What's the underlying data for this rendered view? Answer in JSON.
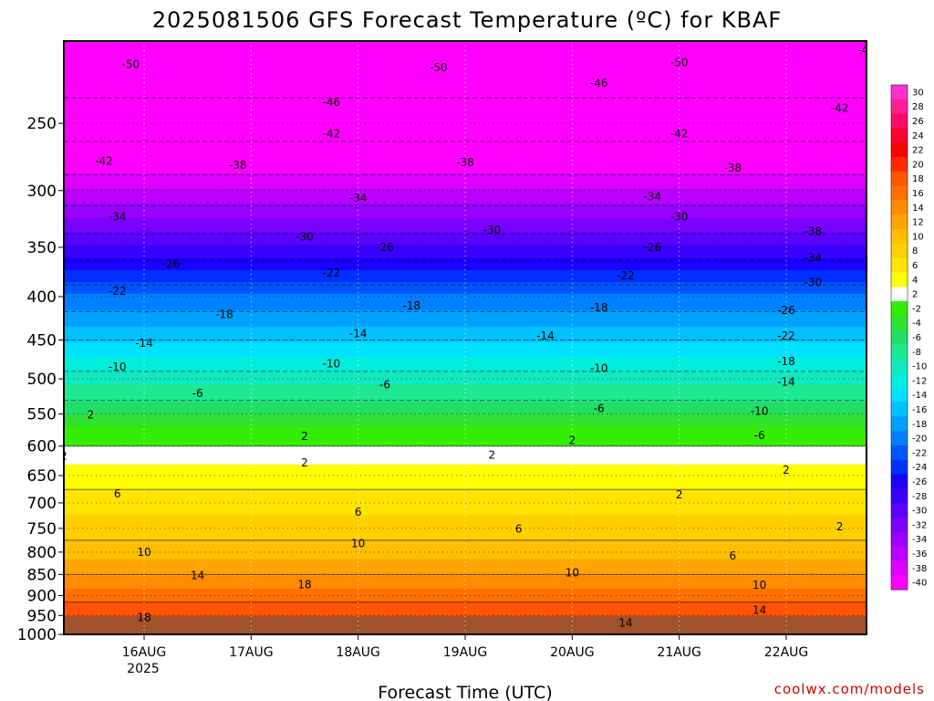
{
  "chart_data": {
    "type": "heatmap",
    "title": "2025081506 GFS Forecast Temperature (ºC) for KBAF",
    "xlabel": "Forecast Time (UTC)",
    "ylabel": "",
    "x_ticks": [
      "16AUG",
      "17AUG",
      "18AUG",
      "19AUG",
      "20AUG",
      "21AUG",
      "22AUG"
    ],
    "x_year_label": "2025",
    "x_range": [
      "2025-08-15T06:00Z",
      "2025-08-22T18:00Z"
    ],
    "y_ticks": [
      250,
      300,
      350,
      400,
      450,
      500,
      550,
      600,
      650,
      700,
      750,
      800,
      850,
      900,
      950,
      1000
    ],
    "y_range_hpa": [
      200,
      1000
    ],
    "y_scale": "log",
    "y_unit": "hPa",
    "grid": true,
    "colorbar_labels": [
      30,
      28,
      26,
      24,
      22,
      20,
      18,
      16,
      14,
      12,
      10,
      8,
      6,
      4,
      2,
      -2,
      -4,
      -6,
      -8,
      -10,
      -12,
      -14,
      -16,
      -18,
      -20,
      -22,
      -24,
      -26,
      -28,
      -30,
      -32,
      -34,
      -36,
      -38,
      -40
    ],
    "colorbar_colors": [
      "#ff33cc",
      "#ff1f99",
      "#ff0a66",
      "#ff0033",
      "#ff0000",
      "#ff2a00",
      "#ff5500",
      "#ff7000",
      "#ff8c00",
      "#ffa500",
      "#ffbe00",
      "#ffd000",
      "#ffe400",
      "#ffff00",
      "#ffffff",
      "#33ee00",
      "#2ee22e",
      "#22dd66",
      "#1ee890",
      "#11e8c0",
      "#00eedd",
      "#00e0ff",
      "#00c0ff",
      "#00a0ff",
      "#0080ff",
      "#0055ff",
      "#0030ff",
      "#1a00ff",
      "#3a00ff",
      "#5a00ff",
      "#7a00ff",
      "#9900ff",
      "#bb00ff",
      "#dd00ff",
      "#ff00ff"
    ],
    "temperature_profile_pressure_hpa": [
      200,
      250,
      300,
      350,
      400,
      450,
      500,
      550,
      600,
      650,
      700,
      750,
      800,
      850,
      900,
      950,
      1000
    ],
    "temperature_profile_c": [
      -50,
      -44,
      -36,
      -28,
      -20,
      -14,
      -9,
      -4,
      2,
      5,
      7,
      9,
      11,
      14,
      17,
      20,
      22
    ],
    "contour_labels": [
      {
        "time": "2025-08-15T21:00Z",
        "p": 213,
        "text": "-50"
      },
      {
        "time": "2025-08-18T18:00Z",
        "p": 215,
        "text": "-50"
      },
      {
        "time": "2025-08-21T00:00Z",
        "p": 212,
        "text": "-50"
      },
      {
        "time": "2025-08-22T18:00Z",
        "p": 205,
        "text": "-46"
      },
      {
        "time": "2025-08-17T18:00Z",
        "p": 236,
        "text": "-46"
      },
      {
        "time": "2025-08-20T06:00Z",
        "p": 224,
        "text": "-46"
      },
      {
        "time": "2025-08-17T18:00Z",
        "p": 257,
        "text": "-42"
      },
      {
        "time": "2025-08-15T15:00Z",
        "p": 277,
        "text": "-42"
      },
      {
        "time": "2025-08-21T00:00Z",
        "p": 257,
        "text": "-42"
      },
      {
        "time": "2025-08-22T12:00Z",
        "p": 240,
        "text": "-42"
      },
      {
        "time": "2025-08-16T21:00Z",
        "p": 280,
        "text": "-38"
      },
      {
        "time": "2025-08-19T00:00Z",
        "p": 278,
        "text": "-38"
      },
      {
        "time": "2025-08-21T12:00Z",
        "p": 282,
        "text": "-38"
      },
      {
        "time": "2025-08-22T06:00Z",
        "p": 335,
        "text": "-38"
      },
      {
        "time": "2025-08-15T18:00Z",
        "p": 322,
        "text": "-34"
      },
      {
        "time": "2025-08-18T00:00Z",
        "p": 306,
        "text": "-34"
      },
      {
        "time": "2025-08-20T18:00Z",
        "p": 305,
        "text": "-34"
      },
      {
        "time": "2025-08-22T06:00Z",
        "p": 360,
        "text": "-34"
      },
      {
        "time": "2025-08-17T12:00Z",
        "p": 340,
        "text": "-30"
      },
      {
        "time": "2025-08-19T06:00Z",
        "p": 334,
        "text": "-30"
      },
      {
        "time": "2025-08-21T00:00Z",
        "p": 322,
        "text": "-30"
      },
      {
        "time": "2025-08-22T06:00Z",
        "p": 385,
        "text": "-30"
      },
      {
        "time": "2025-08-16T06:00Z",
        "p": 366,
        "text": "-26"
      },
      {
        "time": "2025-08-18T06:00Z",
        "p": 350,
        "text": "-26"
      },
      {
        "time": "2025-08-20T18:00Z",
        "p": 350,
        "text": "-26"
      },
      {
        "time": "2025-08-22T00:00Z",
        "p": 415,
        "text": "-26"
      },
      {
        "time": "2025-08-15T18:00Z",
        "p": 394,
        "text": "-22"
      },
      {
        "time": "2025-08-17T18:00Z",
        "p": 375,
        "text": "-22"
      },
      {
        "time": "2025-08-20T12:00Z",
        "p": 378,
        "text": "-22"
      },
      {
        "time": "2025-08-22T00:00Z",
        "p": 445,
        "text": "-22"
      },
      {
        "time": "2025-08-16T18:00Z",
        "p": 420,
        "text": "-18"
      },
      {
        "time": "2025-08-18T12:00Z",
        "p": 410,
        "text": "-18"
      },
      {
        "time": "2025-08-20T06:00Z",
        "p": 412,
        "text": "-18"
      },
      {
        "time": "2025-08-22T00:00Z",
        "p": 477,
        "text": "-18"
      },
      {
        "time": "2025-08-16T00:00Z",
        "p": 454,
        "text": "-14"
      },
      {
        "time": "2025-08-18T00:00Z",
        "p": 442,
        "text": "-14"
      },
      {
        "time": "2025-08-19T18:00Z",
        "p": 445,
        "text": "-14"
      },
      {
        "time": "2025-08-22T00:00Z",
        "p": 504,
        "text": "-14"
      },
      {
        "time": "2025-08-15T18:00Z",
        "p": 484,
        "text": "-10"
      },
      {
        "time": "2025-08-17T18:00Z",
        "p": 480,
        "text": "-10"
      },
      {
        "time": "2025-08-20T06:00Z",
        "p": 486,
        "text": "-10"
      },
      {
        "time": "2025-08-21T18:00Z",
        "p": 546,
        "text": "-10"
      },
      {
        "time": "2025-08-16T12:00Z",
        "p": 520,
        "text": "-6"
      },
      {
        "time": "2025-08-18T06:00Z",
        "p": 508,
        "text": "-6"
      },
      {
        "time": "2025-08-20T06:00Z",
        "p": 542,
        "text": "-6"
      },
      {
        "time": "2025-08-21T18:00Z",
        "p": 583,
        "text": "-6"
      },
      {
        "time": "2025-08-15T12:00Z",
        "p": 551,
        "text": "2"
      },
      {
        "time": "2025-08-17T12:00Z",
        "p": 584,
        "text": "2"
      },
      {
        "time": "2025-08-15T06:00Z",
        "p": 616,
        "text": "2"
      },
      {
        "time": "2025-08-17T12:00Z",
        "p": 628,
        "text": "2"
      },
      {
        "time": "2025-08-19T06:00Z",
        "p": 615,
        "text": "2"
      },
      {
        "time": "2025-08-20T00:00Z",
        "p": 591,
        "text": "2"
      },
      {
        "time": "2025-08-21T00:00Z",
        "p": 685,
        "text": "2"
      },
      {
        "time": "2025-08-22T00:00Z",
        "p": 640,
        "text": "2"
      },
      {
        "time": "2025-08-22T12:00Z",
        "p": 747,
        "text": "2"
      },
      {
        "time": "2025-08-15T18:00Z",
        "p": 683,
        "text": "6"
      },
      {
        "time": "2025-08-18T00:00Z",
        "p": 718,
        "text": "6"
      },
      {
        "time": "2025-08-19T12:00Z",
        "p": 751,
        "text": "6"
      },
      {
        "time": "2025-08-21T12:00Z",
        "p": 808,
        "text": "6"
      },
      {
        "time": "2025-08-16T00:00Z",
        "p": 800,
        "text": "10"
      },
      {
        "time": "2025-08-18T00:00Z",
        "p": 782,
        "text": "10"
      },
      {
        "time": "2025-08-20T00:00Z",
        "p": 846,
        "text": "10"
      },
      {
        "time": "2025-08-21T18:00Z",
        "p": 875,
        "text": "10"
      },
      {
        "time": "2025-08-16T12:00Z",
        "p": 852,
        "text": "14"
      },
      {
        "time": "2025-08-20T12:00Z",
        "p": 970,
        "text": "14"
      },
      {
        "time": "2025-08-21T18:00Z",
        "p": 936,
        "text": "14"
      },
      {
        "time": "2025-08-17T12:00Z",
        "p": 874,
        "text": "18"
      },
      {
        "time": "2025-08-16T00:00Z",
        "p": 955,
        "text": "18"
      }
    ]
  },
  "credit": "coolwx.com/models"
}
